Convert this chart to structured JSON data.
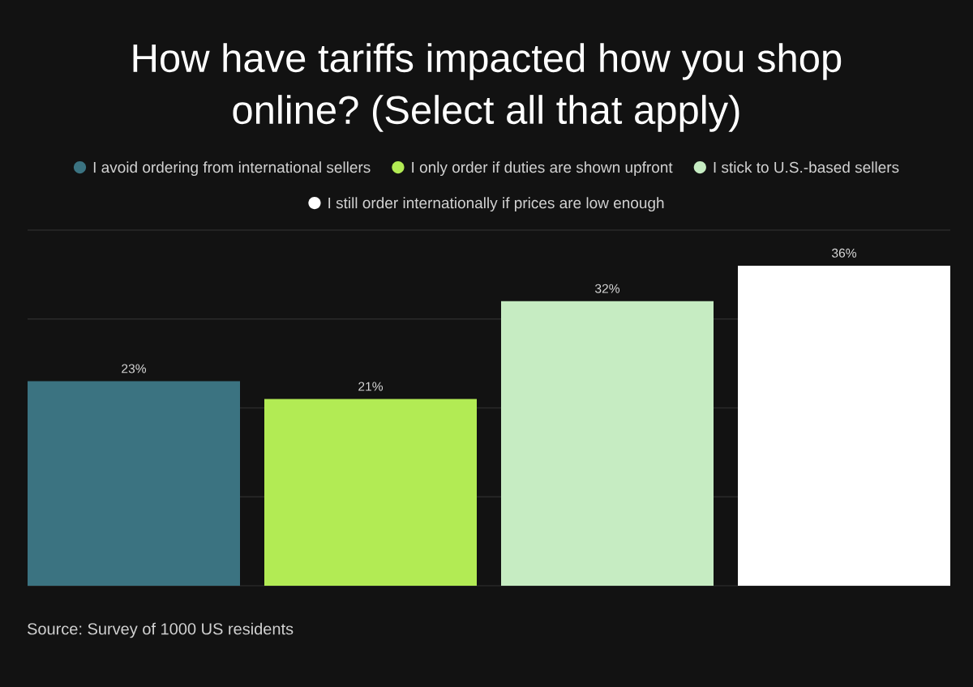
{
  "chart_data": {
    "type": "bar",
    "title": "How have tariffs impacted how you shop online? (Select all that apply)",
    "categories": [
      null
    ],
    "series": [
      {
        "name": "I avoid ordering from international sellers",
        "color": "#3b7381",
        "values": [
          23
        ],
        "value_labels": [
          "23%"
        ]
      },
      {
        "name": "I only order if duties are shown upfront",
        "color": "#b2eb54",
        "values": [
          21
        ],
        "value_labels": [
          "21%"
        ]
      },
      {
        "name": "I stick to U.S.-based sellers",
        "color": "#c6ecc2",
        "values": [
          32
        ],
        "value_labels": [
          "32%"
        ]
      },
      {
        "name": "I still order internationally if prices are low enough",
        "color": "#ffffff",
        "values": [
          36
        ],
        "value_labels": [
          "36%"
        ]
      }
    ],
    "ylim": [
      0,
      40
    ],
    "yticks": [
      {
        "value": 10,
        "label": null
      },
      {
        "value": 20,
        "label": null
      },
      {
        "value": 30,
        "label": null
      },
      {
        "value": 40,
        "label": null
      }
    ],
    "grid": "y",
    "legend": "top",
    "annotations": [
      "Source: Survey of 1000 US residents"
    ]
  }
}
